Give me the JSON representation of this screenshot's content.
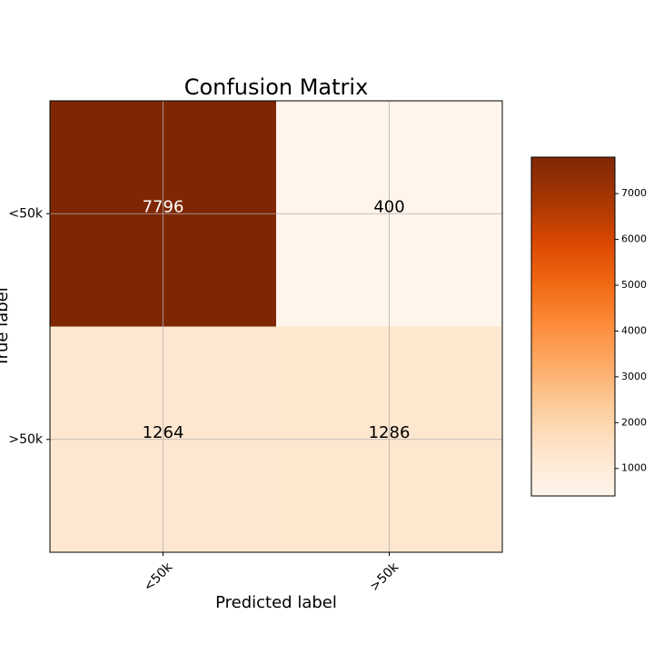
{
  "chart_data": {
    "type": "heatmap",
    "title": "Confusion Matrix",
    "xlabel": "Predicted label",
    "ylabel": "True label",
    "x_categories": [
      "<50k",
      ">50k"
    ],
    "y_categories": [
      "<50k",
      ">50k"
    ],
    "values": [
      [
        7796,
        400
      ],
      [
        1264,
        1286
      ]
    ],
    "colormap": "Oranges",
    "clim": [
      400,
      7796
    ],
    "colorbar_ticks": [
      1000,
      2000,
      3000,
      4000,
      5000,
      6000,
      7000
    ],
    "grid": true
  }
}
